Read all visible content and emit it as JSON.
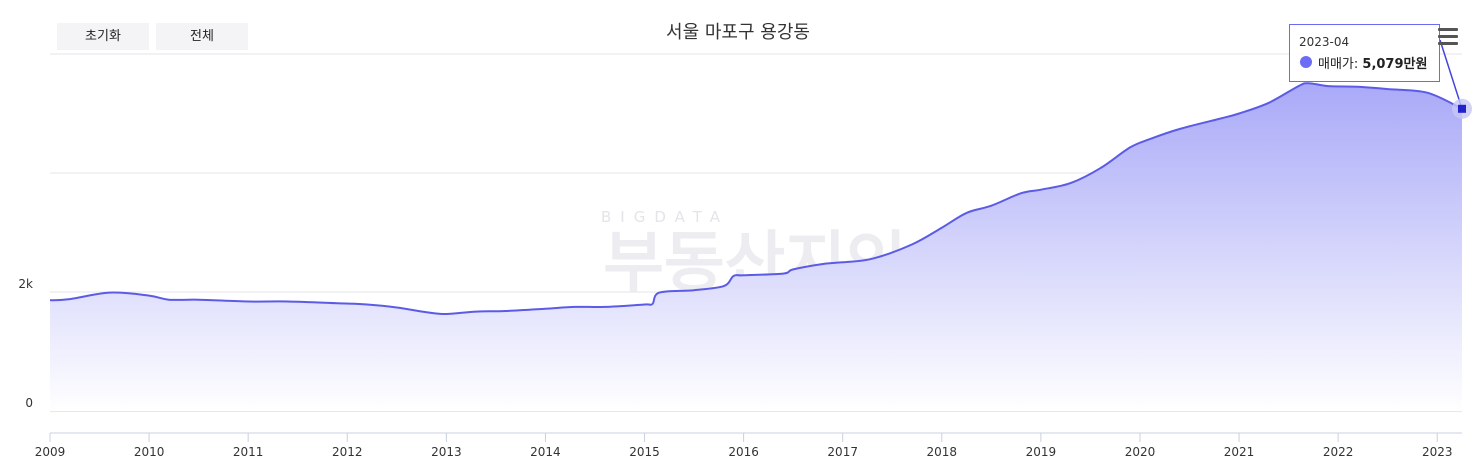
{
  "buttons": {
    "reset": "초기화",
    "all": "전체"
  },
  "chart_data": {
    "type": "area",
    "title": "서울 마포구 용강동",
    "y_axis": {
      "ticks": [
        {
          "value": 0,
          "label": "0"
        },
        {
          "value": 2000,
          "label": "2k"
        }
      ],
      "range": [
        0,
        6000
      ]
    },
    "x_axis": {
      "ticks": [
        "2009",
        "2010",
        "2011",
        "2012",
        "2013",
        "2014",
        "2015",
        "2016",
        "2017",
        "2018",
        "2019",
        "2020",
        "2021",
        "2022",
        "2023"
      ],
      "range": [
        2009.0,
        2023.25
      ]
    },
    "series": [
      {
        "name": "매매가",
        "unit": "만원",
        "points": [
          [
            2009.0,
            1860
          ],
          [
            2009.2,
            1880
          ],
          [
            2009.6,
            1990
          ],
          [
            2010.0,
            1940
          ],
          [
            2010.2,
            1870
          ],
          [
            2010.5,
            1870
          ],
          [
            2011.0,
            1840
          ],
          [
            2011.4,
            1840
          ],
          [
            2011.9,
            1810
          ],
          [
            2012.2,
            1790
          ],
          [
            2012.5,
            1740
          ],
          [
            2012.8,
            1660
          ],
          [
            2013.0,
            1630
          ],
          [
            2013.3,
            1670
          ],
          [
            2013.6,
            1680
          ],
          [
            2014.0,
            1720
          ],
          [
            2014.3,
            1750
          ],
          [
            2014.6,
            1750
          ],
          [
            2015.0,
            1790
          ],
          [
            2015.08,
            1800
          ],
          [
            2015.15,
            1990
          ],
          [
            2015.5,
            2030
          ],
          [
            2015.8,
            2100
          ],
          [
            2015.9,
            2270
          ],
          [
            2016.0,
            2280
          ],
          [
            2016.4,
            2310
          ],
          [
            2016.5,
            2380
          ],
          [
            2016.8,
            2470
          ],
          [
            2017.0,
            2500
          ],
          [
            2017.3,
            2560
          ],
          [
            2017.7,
            2800
          ],
          [
            2018.0,
            3080
          ],
          [
            2018.25,
            3330
          ],
          [
            2018.5,
            3450
          ],
          [
            2018.8,
            3660
          ],
          [
            2019.0,
            3720
          ],
          [
            2019.3,
            3830
          ],
          [
            2019.6,
            4080
          ],
          [
            2019.9,
            4430
          ],
          [
            2020.1,
            4570
          ],
          [
            2020.4,
            4740
          ],
          [
            2020.8,
            4910
          ],
          [
            2021.0,
            5000
          ],
          [
            2021.3,
            5180
          ],
          [
            2021.6,
            5460
          ],
          [
            2021.7,
            5510
          ],
          [
            2021.9,
            5460
          ],
          [
            2022.2,
            5450
          ],
          [
            2022.5,
            5410
          ],
          [
            2022.9,
            5350
          ],
          [
            2023.25,
            5079
          ]
        ]
      }
    ],
    "grid": true,
    "legend": "none",
    "colors": {
      "line": "#5b5be6",
      "fill_top": "#a9a9f8",
      "fill_bottom": "#ffffff",
      "marker": "#2222cc"
    },
    "watermark": {
      "top": "BIGDATA",
      "bottom": "부동산지인"
    },
    "tooltip": {
      "date": "2023-04",
      "label": "매매가:",
      "value": "5,079만원"
    }
  }
}
